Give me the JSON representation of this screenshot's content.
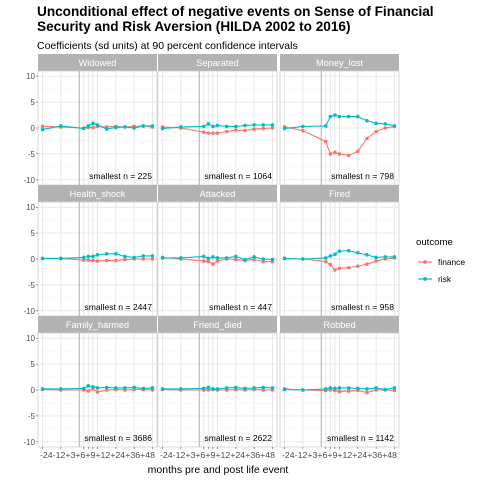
{
  "title_line1": "Unconditional effect of negative events on Sense of Financial",
  "title_line2": "Security  and Risk Aversion (HILDA 2002 to 2016)",
  "subtitle": "Coefficients (sd units) at 90 percent confidence intervals",
  "chart_data": {
    "type": "line",
    "xlabel": "months pre and post life event",
    "ylabel": "",
    "x": [
      -24,
      -12,
      3,
      6,
      9,
      12,
      18,
      24,
      30,
      36,
      42,
      48
    ],
    "x_tick_labels": [
      "-24",
      "-12",
      "+3",
      "+6",
      "+9",
      "+12",
      "+24",
      "+36",
      "+48"
    ],
    "x_tick_values": [
      -24,
      -12,
      3,
      6,
      9,
      12,
      24,
      36,
      48
    ],
    "event_line_x": 0,
    "ylim": [
      -11,
      11
    ],
    "y_ticks": [
      10,
      5,
      0,
      -5,
      -10
    ],
    "grid": true,
    "legend": {
      "title": "outcome",
      "position": "right",
      "entries": [
        "finance",
        "risk"
      ]
    },
    "colors": {
      "finance": "#F8766D",
      "risk": "#00BFC4",
      "strip": "#B3B3B3",
      "panel": "#FFFFFF",
      "grid": "#EBEBEB"
    },
    "panels": [
      {
        "name": "Widowed",
        "n_label": "smallest n = 225",
        "series": [
          {
            "name": "finance",
            "values": [
              0.3,
              0.2,
              0.0,
              0.1,
              0.1,
              0.3,
              0.2,
              0.3,
              0.2,
              0.3,
              0.4,
              0.2
            ]
          },
          {
            "name": "risk",
            "values": [
              -0.3,
              0.4,
              -0.1,
              0.4,
              0.9,
              0.6,
              -0.2,
              0.1,
              0.2,
              0.0,
              0.4,
              0.4
            ]
          }
        ]
      },
      {
        "name": "Separated",
        "n_label": "smallest n = 1064",
        "series": [
          {
            "name": "finance",
            "values": [
              0.2,
              0.0,
              -0.8,
              -1.0,
              -1.0,
              -1.0,
              -0.7,
              -0.4,
              -0.5,
              -0.2,
              -0.1,
              0.0
            ]
          },
          {
            "name": "risk",
            "values": [
              -0.1,
              0.2,
              0.3,
              0.8,
              0.3,
              0.5,
              0.3,
              0.3,
              0.5,
              0.6,
              0.6,
              0.6
            ]
          }
        ]
      },
      {
        "name": "Money_lost",
        "n_label": "smallest n = 798",
        "series": [
          {
            "name": "finance",
            "values": [
              0.2,
              -0.5,
              -2.6,
              -5.0,
              -4.7,
              -5.0,
              -5.3,
              -4.5,
              -2.0,
              -0.7,
              0.0,
              0.3
            ]
          },
          {
            "name": "risk",
            "values": [
              -0.1,
              0.3,
              0.4,
              2.2,
              2.5,
              2.2,
              2.2,
              2.2,
              1.4,
              0.9,
              0.8,
              0.4
            ]
          }
        ]
      },
      {
        "name": "Health_shock",
        "n_label": "smallest n = 2447",
        "series": [
          {
            "name": "finance",
            "values": [
              0.1,
              0.1,
              -0.2,
              -0.2,
              -0.3,
              -0.4,
              -0.3,
              -0.3,
              -0.1,
              0.0,
              0.0,
              0.0
            ]
          },
          {
            "name": "risk",
            "values": [
              0.1,
              0.1,
              0.3,
              0.5,
              0.5,
              0.8,
              1.0,
              1.0,
              0.5,
              0.3,
              0.6,
              0.6
            ]
          }
        ]
      },
      {
        "name": "Attacked",
        "n_label": "smallest n = 447",
        "series": [
          {
            "name": "finance",
            "values": [
              0.3,
              0.0,
              -0.4,
              -0.5,
              -1.0,
              -0.4,
              0.0,
              -0.1,
              -0.3,
              -0.1,
              -0.5,
              -0.5
            ]
          },
          {
            "name": "risk",
            "values": [
              0.2,
              0.2,
              0.5,
              0.1,
              0.4,
              0.2,
              0.2,
              0.5,
              -0.1,
              0.4,
              0.0,
              -0.1
            ]
          }
        ]
      },
      {
        "name": "Fired",
        "n_label": "smallest n = 958",
        "series": [
          {
            "name": "finance",
            "values": [
              0.1,
              0.0,
              -0.5,
              -1.1,
              -2.1,
              -1.8,
              -1.7,
              -1.4,
              -1.0,
              -0.4,
              0.0,
              0.2
            ]
          },
          {
            "name": "risk",
            "values": [
              0.1,
              0.0,
              0.2,
              0.6,
              0.9,
              1.5,
              1.6,
              1.2,
              0.8,
              0.3,
              0.4,
              0.4
            ]
          }
        ]
      },
      {
        "name": "Family_harmed",
        "n_label": "smallest n = 3686",
        "series": [
          {
            "name": "finance",
            "values": [
              0.1,
              0.0,
              0.0,
              -0.2,
              0.2,
              -0.4,
              0.0,
              0.1,
              0.0,
              0.1,
              0.1,
              0.0
            ]
          },
          {
            "name": "risk",
            "values": [
              0.2,
              0.2,
              0.3,
              0.8,
              0.6,
              0.4,
              0.5,
              0.4,
              0.4,
              0.5,
              0.3,
              0.4
            ]
          }
        ]
      },
      {
        "name": "Friend_died",
        "n_label": "smallest n = 2622",
        "series": [
          {
            "name": "finance",
            "values": [
              0.1,
              0.0,
              0.0,
              0.0,
              0.1,
              0.0,
              0.0,
              0.1,
              0.0,
              0.1,
              0.0,
              0.0
            ]
          },
          {
            "name": "risk",
            "values": [
              0.2,
              0.2,
              0.3,
              0.5,
              0.2,
              0.2,
              0.4,
              0.5,
              0.3,
              0.4,
              0.5,
              0.4
            ]
          }
        ]
      },
      {
        "name": "Robbed",
        "n_label": "smallest n = 1142",
        "series": [
          {
            "name": "finance",
            "values": [
              0.2,
              0.0,
              -0.1,
              0.0,
              -0.1,
              -0.3,
              -0.2,
              -0.1,
              -0.5,
              0.0,
              0.0,
              -0.1
            ]
          },
          {
            "name": "risk",
            "values": [
              0.1,
              0.0,
              0.2,
              0.4,
              0.3,
              0.4,
              0.4,
              0.3,
              0.2,
              0.4,
              0.1,
              0.4
            ]
          }
        ]
      }
    ]
  }
}
